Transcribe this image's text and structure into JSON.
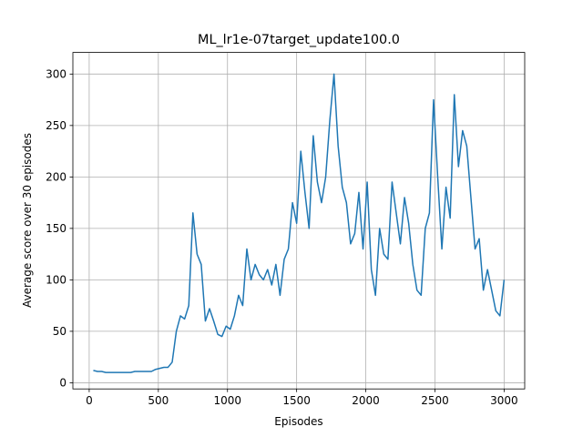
{
  "chart_data": {
    "type": "line",
    "title": "ML_lr1e-07target_update100.0",
    "x_label": "Episodes",
    "y_label": "Average score over 30 episodes",
    "x": [
      30,
      60,
      90,
      120,
      150,
      180,
      210,
      240,
      270,
      300,
      330,
      360,
      390,
      420,
      450,
      480,
      510,
      540,
      570,
      600,
      630,
      660,
      690,
      720,
      750,
      780,
      810,
      840,
      870,
      900,
      930,
      960,
      990,
      1020,
      1050,
      1080,
      1110,
      1140,
      1170,
      1200,
      1230,
      1260,
      1290,
      1320,
      1350,
      1380,
      1410,
      1440,
      1470,
      1500,
      1530,
      1560,
      1590,
      1620,
      1650,
      1680,
      1710,
      1740,
      1770,
      1800,
      1830,
      1860,
      1890,
      1920,
      1950,
      1980,
      2010,
      2040,
      2070,
      2100,
      2130,
      2160,
      2190,
      2220,
      2250,
      2280,
      2310,
      2340,
      2370,
      2400,
      2430,
      2460,
      2490,
      2520,
      2550,
      2580,
      2610,
      2640,
      2670,
      2700,
      2730,
      2760,
      2790,
      2820,
      2850,
      2880,
      2910,
      2940,
      2970,
      3000
    ],
    "values": [
      12,
      11,
      11,
      10,
      10,
      10,
      10,
      10,
      10,
      10,
      11,
      11,
      11,
      11,
      11,
      13,
      14,
      15,
      15,
      20,
      50,
      65,
      62,
      75,
      165,
      125,
      115,
      60,
      72,
      60,
      47,
      45,
      55,
      52,
      65,
      85,
      75,
      130,
      100,
      115,
      105,
      100,
      110,
      95,
      115,
      85,
      120,
      130,
      175,
      155,
      225,
      185,
      150,
      240,
      195,
      175,
      200,
      255,
      300,
      230,
      190,
      175,
      135,
      145,
      185,
      130,
      195,
      110,
      85,
      150,
      125,
      120,
      195,
      165,
      135,
      180,
      155,
      115,
      90,
      85,
      150,
      165,
      275,
      200,
      130,
      190,
      160,
      280,
      210,
      245,
      230,
      180,
      130,
      140,
      90,
      110,
      90,
      70,
      65,
      100
    ],
    "color": "#1f77b4",
    "xlim": [
      -118,
      3149
    ],
    "ylim": [
      -6,
      321
    ],
    "xticks": [
      0,
      500,
      1000,
      1500,
      2000,
      2500,
      3000
    ],
    "yticks": [
      0,
      50,
      100,
      150,
      200,
      250,
      300
    ],
    "grid": true
  }
}
